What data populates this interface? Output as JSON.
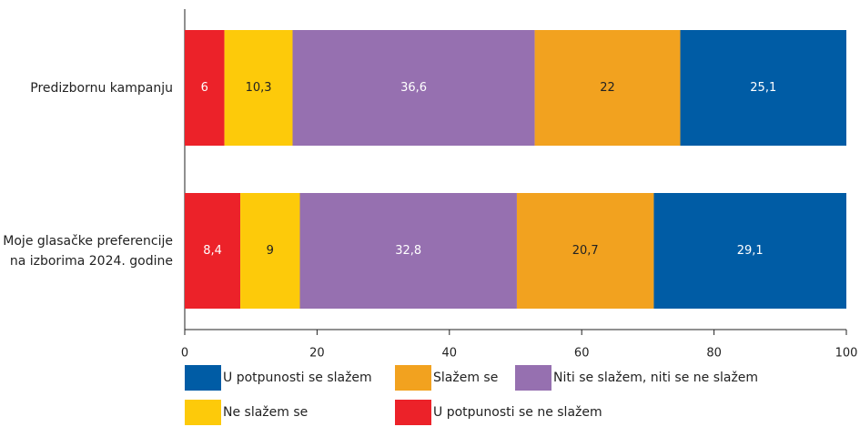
{
  "chart_data": {
    "type": "stacked_bar_horizontal",
    "categories": [
      "Predizbornu kampanju",
      "Moje glasačke preferencije na izborima 2024. godine"
    ],
    "series": [
      {
        "name": "U potpunosti se slažem",
        "color": "#005ca5",
        "values": [
          25.1,
          29.1
        ],
        "value_labels": [
          "25,1",
          "29,1"
        ]
      },
      {
        "name": "Slažem se",
        "color": "#f2a21f",
        "values": [
          22,
          20.7
        ],
        "value_labels": [
          "22",
          "20,7"
        ]
      },
      {
        "name": "Niti se slažem, niti se ne slažem",
        "color": "#9670b0",
        "values": [
          36.6,
          32.8
        ],
        "value_labels": [
          "36,6",
          "32,8"
        ]
      },
      {
        "name": "Ne slažem se",
        "color": "#fdca0a",
        "values": [
          10.3,
          9
        ],
        "value_labels": [
          "10,3",
          "9"
        ]
      },
      {
        "name": "U potpunosti se ne slažem",
        "color": "#ec2229",
        "values": [
          6,
          8.4
        ],
        "value_labels": [
          "6",
          "8,4"
        ]
      }
    ],
    "xlim": [
      0,
      100
    ],
    "xticks": [
      0,
      20,
      40,
      60,
      80,
      100
    ],
    "legend": "bottom"
  }
}
